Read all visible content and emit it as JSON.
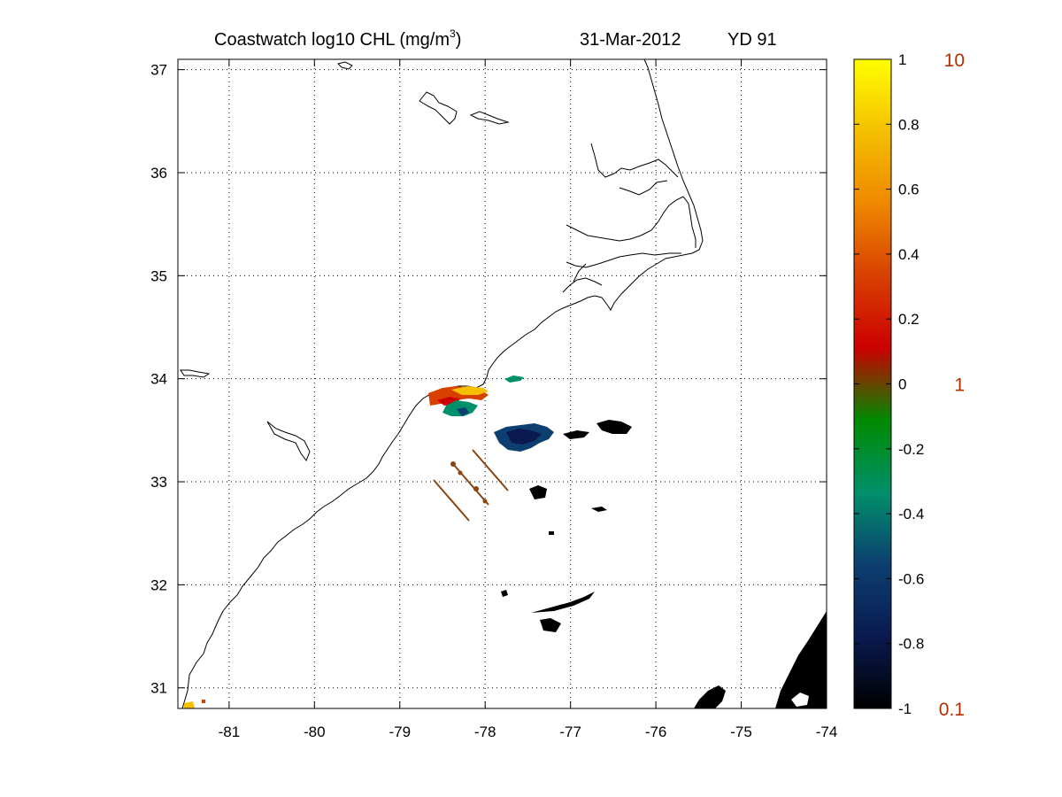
{
  "title": {
    "product": "Coastwatch  log10  CHL (mg/m",
    "superscript": "3",
    "close": ")",
    "date": "31-Mar-2012",
    "yearday": "YD 91"
  },
  "map": {
    "lon_range": [
      -81.6,
      -74
    ],
    "lat_range": [
      30.8,
      37.1
    ],
    "lon_ticks": [
      -81,
      -80,
      -79,
      -78,
      -77,
      -76,
      -75,
      -74
    ],
    "lat_ticks": [
      31,
      32,
      33,
      34,
      35,
      36,
      37
    ],
    "lon_labels": [
      "-81",
      "-80",
      "-79",
      "-78",
      "-77",
      "-76",
      "-75",
      "-74"
    ],
    "lat_labels": [
      "31",
      "32",
      "33",
      "34",
      "35",
      "36",
      "37"
    ],
    "grid": "dotted",
    "coastline_color": "#000000",
    "transect_color": "#8b4513"
  },
  "colorbar": {
    "range": [
      -1,
      1
    ],
    "tick_labels": [
      "1",
      "0.8",
      "0.6",
      "0.4",
      "0.2",
      "0",
      "-0.2",
      "-0.4",
      "-0.6",
      "-0.8",
      "-1"
    ],
    "tick_values": [
      1,
      0.8,
      0.6,
      0.4,
      0.2,
      0,
      -0.2,
      -0.4,
      -0.6,
      -0.8,
      -1
    ],
    "linear_labels": [
      "10",
      "1",
      "0.1"
    ],
    "linear_values": [
      1,
      0,
      -1
    ],
    "linear_label_color": "#b03000",
    "stops": [
      "#000000",
      "#0a1a50",
      "#0c3f70",
      "#00906a",
      "#008a00",
      "#cc0000",
      "#d84000",
      "#ee8800",
      "#f4c000",
      "#ffff00"
    ]
  }
}
